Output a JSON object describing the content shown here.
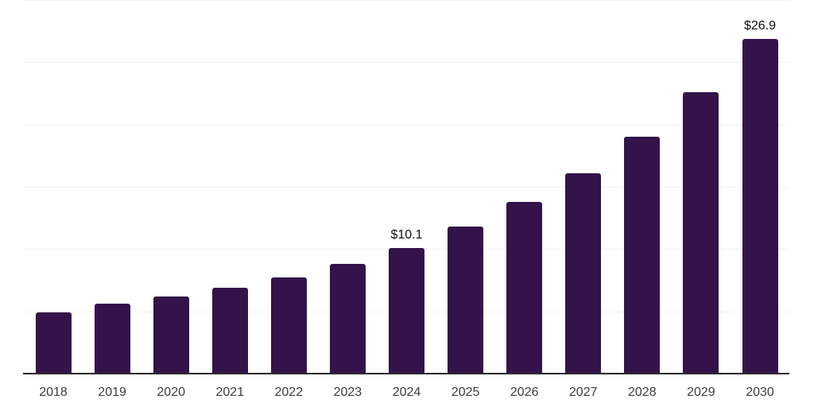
{
  "chart": {
    "background_color": "#ffffff",
    "bar_color": "#331349",
    "grid_color": "#f2f2f2",
    "axis_color": "#2b2b2b",
    "tick_label_color": "#3c3c3c",
    "value_label_color": "#111111"
  },
  "chart_data": {
    "type": "bar",
    "categories": [
      "2018",
      "2019",
      "2020",
      "2021",
      "2022",
      "2023",
      "2024",
      "2025",
      "2026",
      "2027",
      "2028",
      "2029",
      "2030"
    ],
    "values": [
      4.9,
      5.6,
      6.2,
      6.9,
      7.7,
      8.8,
      10.1,
      11.8,
      13.8,
      16.1,
      19.0,
      22.6,
      26.9
    ],
    "labeled_points": [
      {
        "category": "2024",
        "label": "$10.1"
      },
      {
        "category": "2030",
        "label": "$26.9"
      }
    ],
    "title": "",
    "xlabel": "",
    "ylabel": "",
    "ylim": [
      0,
      30
    ],
    "grid_step": 5,
    "grid": "horizontal-only",
    "y_tick_labels_visible": false,
    "legend": "none"
  }
}
